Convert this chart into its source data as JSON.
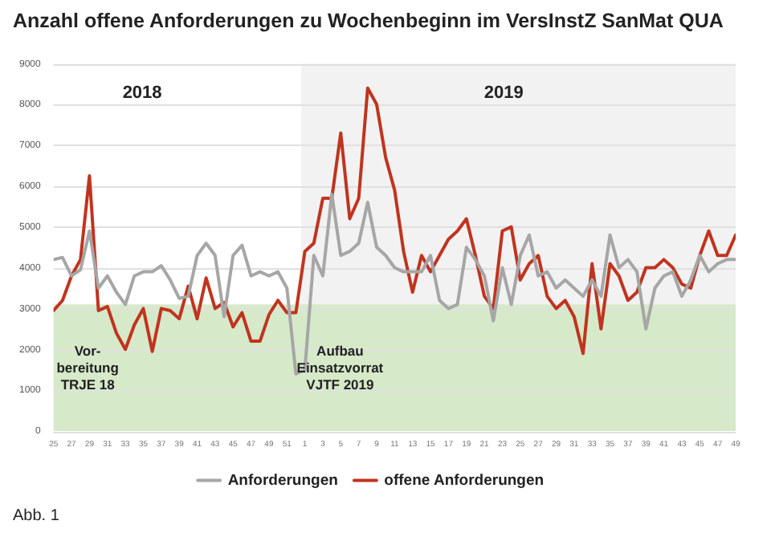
{
  "chart_data": {
    "type": "line",
    "title": "Anzahl offene Anforderungen zu Wochenbeginn im VersInstZ SanMat QUA",
    "x": [
      "2018-06-18",
      "2018-06-25",
      "2018-07-02",
      "2018-07-09",
      "2018-07-16",
      "2018-07-23",
      "2018-07-30",
      "2018-08-06",
      "2018-08-13",
      "2018-08-20",
      "2018-08-27",
      "2018-09-03",
      "2018-09-10",
      "2018-09-17",
      "2018-09-24",
      "2018-10-01",
      "2018-10-08",
      "2018-10-15",
      "2018-10-22",
      "2018-10-29",
      "2018-11-05",
      "2018-11-12",
      "2018-11-19",
      "2018-11-26",
      "2018-12-03",
      "2018-12-10",
      "2018-12-17",
      "2018-12-24",
      "2018-12-31",
      "2019-01-07",
      "2019-01-14",
      "2019-01-21",
      "2019-01-28",
      "2019-02-04",
      "2019-02-11",
      "2019-02-18",
      "2019-02-25",
      "2019-03-04",
      "2019-03-11",
      "2019-03-18",
      "2019-03-25",
      "2019-04-01",
      "2019-04-08",
      "2019-04-15",
      "2019-04-22",
      "2019-04-29",
      "2019-05-06",
      "2019-05-13",
      "2019-05-20",
      "2019-05-27",
      "2019-06-03",
      "2019-06-10",
      "2019-06-17",
      "2019-06-24",
      "2019-07-01",
      "2019-07-08",
      "2019-07-15",
      "2019-07-22",
      "2019-07-29",
      "2019-08-05",
      "2019-08-12",
      "2019-08-19",
      "2019-08-26",
      "2019-09-02",
      "2019-09-09",
      "2019-09-16",
      "2019-09-23",
      "2019-09-30",
      "2019-10-07",
      "2019-10-14",
      "2019-10-21",
      "2019-10-28",
      "2019-11-04",
      "2019-11-11",
      "2019-11-18",
      "2019-11-25",
      "2019-12-02"
    ],
    "series": [
      {
        "name": "Anforderungen",
        "color": "#a6a6a6",
        "values": [
          4200,
          4250,
          3800,
          3950,
          4900,
          3500,
          3800,
          3400,
          3100,
          3800,
          3900,
          3900,
          4050,
          3700,
          3250,
          3300,
          4300,
          4600,
          4300,
          2800,
          4300,
          4550,
          3800,
          3900,
          3800,
          3900,
          3500,
          1400,
          1500,
          4300,
          3800,
          5800,
          4300,
          4400,
          4600,
          5600,
          4500,
          4300,
          4000,
          3900,
          3900,
          3900,
          4300,
          3200,
          3000,
          3100,
          4500,
          4200,
          3800,
          2700,
          4000,
          3100,
          4300,
          4800,
          3800,
          3900,
          3500,
          3700,
          3500,
          3300,
          3700,
          3300,
          4800,
          4000,
          4200,
          3900,
          2500,
          3500,
          3800,
          3900,
          3300,
          3700,
          4300,
          3900,
          4100,
          4200,
          4200
        ]
      },
      {
        "name": "offene Anforderungen",
        "color": "#c0341f",
        "values": [
          2950,
          3200,
          3800,
          4200,
          6250,
          2950,
          3050,
          2400,
          2000,
          2600,
          3000,
          1950,
          3000,
          2950,
          2750,
          3550,
          2750,
          3750,
          3000,
          3150,
          2550,
          2900,
          2200,
          2200,
          2850,
          3200,
          2900,
          2900,
          4400,
          4600,
          5700,
          5700,
          7300,
          5200,
          5700,
          8400,
          8000,
          6700,
          5900,
          4400,
          3400,
          4300,
          3900,
          4300,
          4700,
          4900,
          5200,
          4300,
          3300,
          3000,
          4900,
          5000,
          3700,
          4100,
          4300,
          3300,
          3000,
          3200,
          2800,
          1900,
          4100,
          2500,
          4100,
          3800,
          3200,
          3400,
          4000,
          4000,
          4200,
          4000,
          3600,
          3500,
          4300,
          4900,
          4300,
          4300,
          4800
        ]
      }
    ],
    "xlim": [
      "2018-06-18",
      "2019-12-02"
    ],
    "xticks": [
      {
        "value": "2018-06-18",
        "label": "25"
      },
      {
        "value": "2018-07-02",
        "label": "27"
      },
      {
        "value": "2018-07-16",
        "label": "29"
      },
      {
        "value": "2018-07-30",
        "label": "31"
      },
      {
        "value": "2018-08-13",
        "label": "33"
      },
      {
        "value": "2018-08-27",
        "label": "35"
      },
      {
        "value": "2018-09-10",
        "label": "37"
      },
      {
        "value": "2018-09-24",
        "label": "39"
      },
      {
        "value": "2018-10-08",
        "label": "41"
      },
      {
        "value": "2018-10-22",
        "label": "43"
      },
      {
        "value": "2018-11-05",
        "label": "45"
      },
      {
        "value": "2018-11-19",
        "label": "47"
      },
      {
        "value": "2018-12-03",
        "label": "49"
      },
      {
        "value": "2018-12-17",
        "label": "51"
      },
      {
        "value": "2018-12-31",
        "label": "1"
      },
      {
        "value": "2019-01-14",
        "label": "3"
      },
      {
        "value": "2019-01-28",
        "label": "5"
      },
      {
        "value": "2019-02-11",
        "label": "7"
      },
      {
        "value": "2019-02-25",
        "label": "9"
      },
      {
        "value": "2019-03-11",
        "label": "11"
      },
      {
        "value": "2019-03-25",
        "label": "13"
      },
      {
        "value": "2019-04-08",
        "label": "15"
      },
      {
        "value": "2019-04-22",
        "label": "17"
      },
      {
        "value": "2019-05-06",
        "label": "19"
      },
      {
        "value": "2019-05-20",
        "label": "21"
      },
      {
        "value": "2019-06-03",
        "label": "23"
      },
      {
        "value": "2019-06-17",
        "label": "25"
      },
      {
        "value": "2019-07-01",
        "label": "27"
      },
      {
        "value": "2019-07-15",
        "label": "29"
      },
      {
        "value": "2019-07-29",
        "label": "31"
      },
      {
        "value": "2019-08-12",
        "label": "33"
      },
      {
        "value": "2019-08-26",
        "label": "35"
      },
      {
        "value": "2019-09-09",
        "label": "37"
      },
      {
        "value": "2019-09-23",
        "label": "39"
      },
      {
        "value": "2019-10-07",
        "label": "41"
      },
      {
        "value": "2019-10-21",
        "label": "43"
      },
      {
        "value": "2019-11-04",
        "label": "45"
      },
      {
        "value": "2019-11-18",
        "label": "47"
      },
      {
        "value": "2019-12-02",
        "label": "49"
      }
    ],
    "ylim": [
      0,
      9000
    ],
    "yticks": [
      0,
      1000,
      2000,
      3000,
      4000,
      5000,
      6000,
      7000,
      8000,
      9000
    ],
    "grid": "y",
    "legend": "bottom",
    "marker": "none",
    "line_style": "solid",
    "bands": [
      {
        "axis": "y",
        "from": 0,
        "to": 3100,
        "color": "#d6e9c9"
      },
      {
        "axis": "x",
        "from": "2018-12-28",
        "to": "2019-12-02",
        "color": "#f2f2f2"
      }
    ],
    "annotations": [
      "2018",
      "2019",
      "Vor-\nbereitung\nTRJE 18",
      "Aufbau\nEinsatzvorrat\nVJTF 2019",
      "Abb. 1"
    ]
  }
}
